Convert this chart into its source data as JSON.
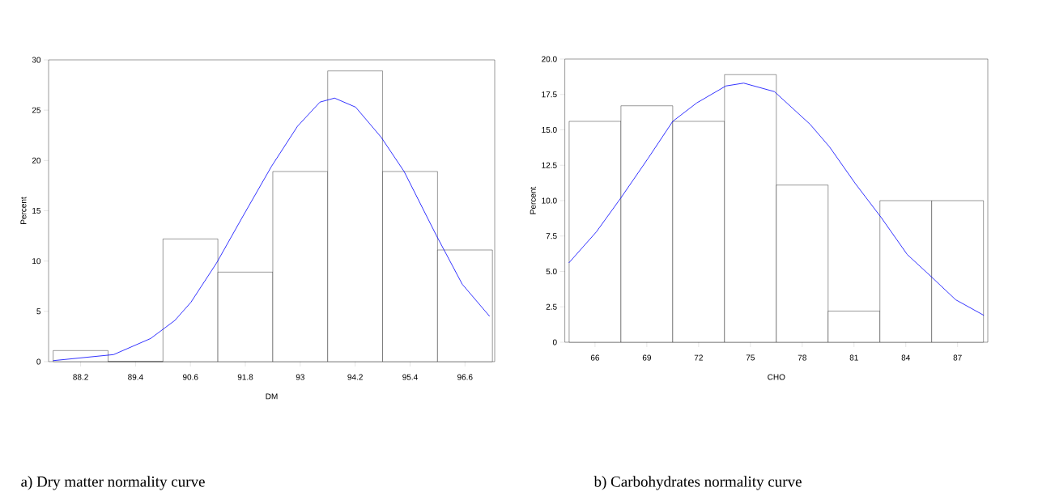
{
  "chart_data": [
    {
      "type": "histogram",
      "xlabel": "DM",
      "ylabel": "Percent",
      "color": "#000000",
      "bins": [
        87.6,
        88.8,
        90.0,
        91.2,
        92.4,
        93.6,
        94.8,
        96.0,
        97.2
      ],
      "values": [
        1.1,
        0,
        12.2,
        8.9,
        18.9,
        28.9,
        18.9,
        11.1
      ],
      "series": [
        {
          "type": "line",
          "color": "#0000ff",
          "x": [
            87.6,
            88.92,
            89.73,
            90.26,
            90.61,
            91.17,
            91.74,
            92.37,
            92.94,
            93.43,
            93.75,
            94.21,
            94.77,
            95.27,
            95.98,
            96.54,
            97.14
          ],
          "values": [
            0.1,
            0.7,
            2.3,
            4.1,
            5.9,
            9.8,
            14.4,
            19.4,
            23.4,
            25.8,
            26.2,
            25.3,
            22.3,
            18.9,
            12.5,
            7.7,
            4.5
          ]
        }
      ],
      "xlim": [
        87.5,
        97.25
      ],
      "ylim": [
        0,
        30
      ],
      "xticks": [
        88.2,
        89.4,
        90.6,
        91.8,
        93,
        94.2,
        95.4,
        96.6
      ],
      "yticks": [
        0,
        5,
        10,
        15,
        20,
        25,
        30
      ],
      "annotations": [
        "a) Dry matter normality curve"
      ]
    },
    {
      "type": "histogram",
      "xlabel": "CHO",
      "ylabel": "Percent",
      "color": "#000000",
      "bins": [
        64.5,
        67.5,
        70.5,
        73.5,
        76.5,
        79.5,
        82.5,
        85.5,
        88.5
      ],
      "values": [
        15.6,
        16.7,
        15.6,
        18.9,
        11.1,
        2.2,
        10.0,
        10.0
      ],
      "series": [
        {
          "type": "line",
          "color": "#0000ff",
          "x": [
            64.48,
            66.08,
            67.5,
            69.08,
            70.5,
            71.89,
            73.58,
            74.61,
            76.39,
            78.45,
            79.58,
            81.08,
            82.58,
            84.08,
            85.5,
            86.89,
            88.52
          ],
          "values": [
            5.6,
            7.8,
            10.2,
            13.0,
            15.6,
            16.9,
            18.1,
            18.3,
            17.7,
            15.4,
            13.8,
            11.2,
            8.8,
            6.2,
            4.6,
            3.0,
            1.9
          ]
        }
      ],
      "xlim": [
        64.25,
        88.75
      ],
      "ylim": [
        0,
        20
      ],
      "xticks": [
        66,
        69,
        72,
        75,
        78,
        81,
        84,
        87
      ],
      "yticks": [
        0,
        2.5,
        {
          "value": 5,
          "label": "5.0"
        },
        7.5,
        {
          "value": 10,
          "label": "10.0"
        },
        12.5,
        {
          "value": 15,
          "label": "15.0"
        },
        17.5,
        {
          "value": 20,
          "label": "20.0"
        }
      ],
      "annotations": [
        "b) Carbohydrates normality curve"
      ]
    }
  ]
}
